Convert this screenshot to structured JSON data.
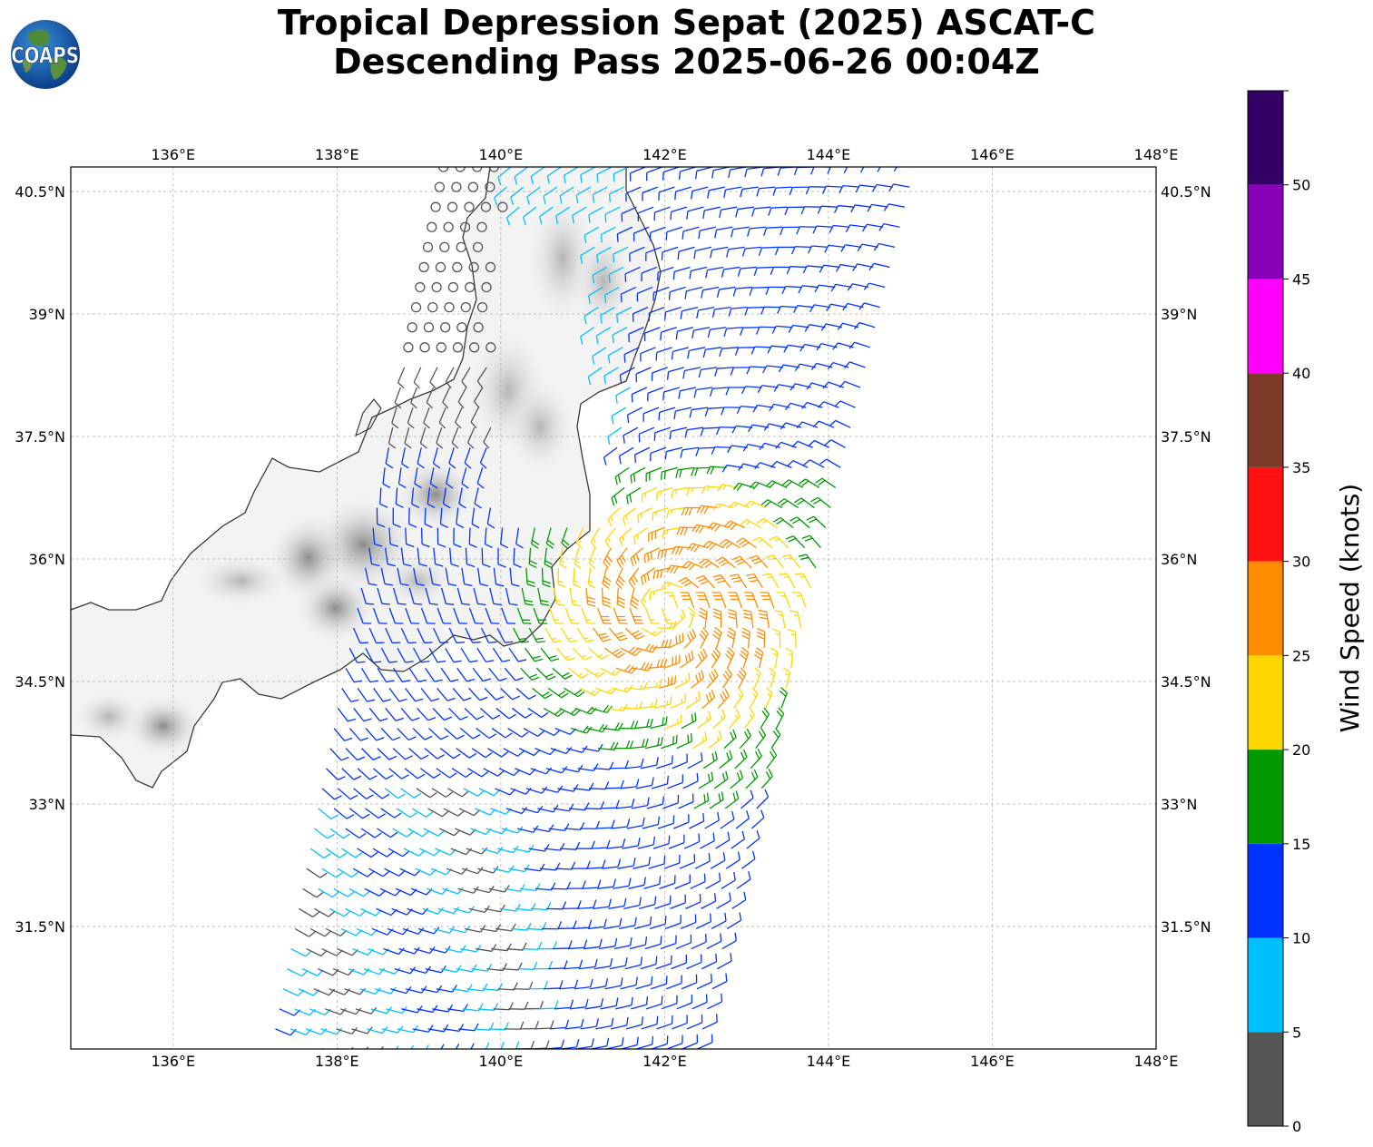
{
  "title": {
    "line1": "Tropical Depression Sepat (2025) ASCAT-C",
    "line2": "Descending Pass 2025-06-26 00:04Z"
  },
  "logo": {
    "text": "COAPS",
    "icon": "globe-logo-icon"
  },
  "map": {
    "lon_range": [
      134.75,
      148.0
    ],
    "lat_range": [
      30.0,
      40.8
    ],
    "lon_ticks": [
      "136°E",
      "138°E",
      "140°E",
      "142°E",
      "144°E",
      "146°E",
      "148°E"
    ],
    "lat_ticks": [
      "40.5°N",
      "39°N",
      "37.5°N",
      "36°N",
      "34.5°N",
      "33°N",
      "31.5°N"
    ],
    "gridlines": true,
    "background": "grayscale terrain over land"
  },
  "colorbar": {
    "label": "Wind Speed (knots)",
    "tick_labels": [
      "0",
      "5",
      "10",
      "15",
      "20",
      "25",
      "30",
      "35",
      "40",
      "45",
      "50"
    ],
    "colors": [
      "#555555",
      "#00bfff",
      "#0033ff",
      "#009900",
      "#ffd700",
      "#ff8c00",
      "#ff1111",
      "#7f3b2a",
      "#ff00ff",
      "#8800b8",
      "#330066"
    ]
  },
  "colors": {
    "coastline": "#3a3a3a",
    "grid": "#aaaaaa"
  }
}
